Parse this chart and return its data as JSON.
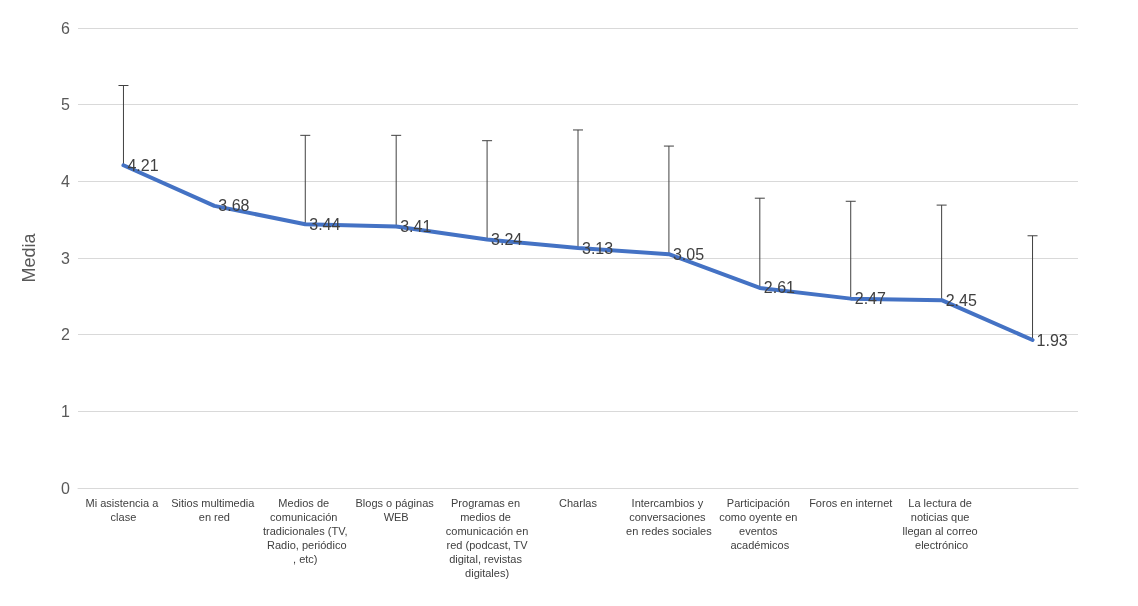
{
  "chart_data": {
    "type": "line",
    "ylabel": "Media",
    "categories": [
      "Mi asistencia a clase",
      "Sitios multimedia en red",
      "Medios de comunicación tradicionales (TV, Radio, periódico, etc)",
      "Blogs o páginas WEB",
      "Programas en medios de comunicación en red (podcast, TV digital, revistas digitales)",
      "Charlas",
      "Intercambios y conversaciones en redes sociales",
      "Participación como oyente en eventos académicos",
      "Foros en internet",
      "La lectura de noticias que llegan al correo electrónico",
      null
    ],
    "series": [
      {
        "color": "#4472c4",
        "values": [
          4.21,
          3.68,
          3.44,
          3.41,
          3.24,
          3.13,
          3.05,
          2.61,
          2.47,
          2.45,
          1.93
        ],
        "errors": [
          [
            4.21,
            5.25
          ],
          null,
          [
            3.44,
            4.6
          ],
          [
            3.41,
            4.6
          ],
          [
            3.24,
            4.53
          ],
          [
            3.13,
            4.67
          ],
          [
            3.05,
            4.46
          ],
          [
            2.61,
            3.78
          ],
          [
            2.47,
            3.74
          ],
          [
            2.45,
            3.69
          ],
          [
            1.93,
            3.29
          ]
        ]
      }
    ],
    "ylim": [
      0,
      6
    ],
    "yticks": [
      0,
      1,
      2,
      3,
      4,
      5,
      6
    ],
    "grid": "y",
    "data_labels": true,
    "marker": "none",
    "line_style": "solid"
  }
}
